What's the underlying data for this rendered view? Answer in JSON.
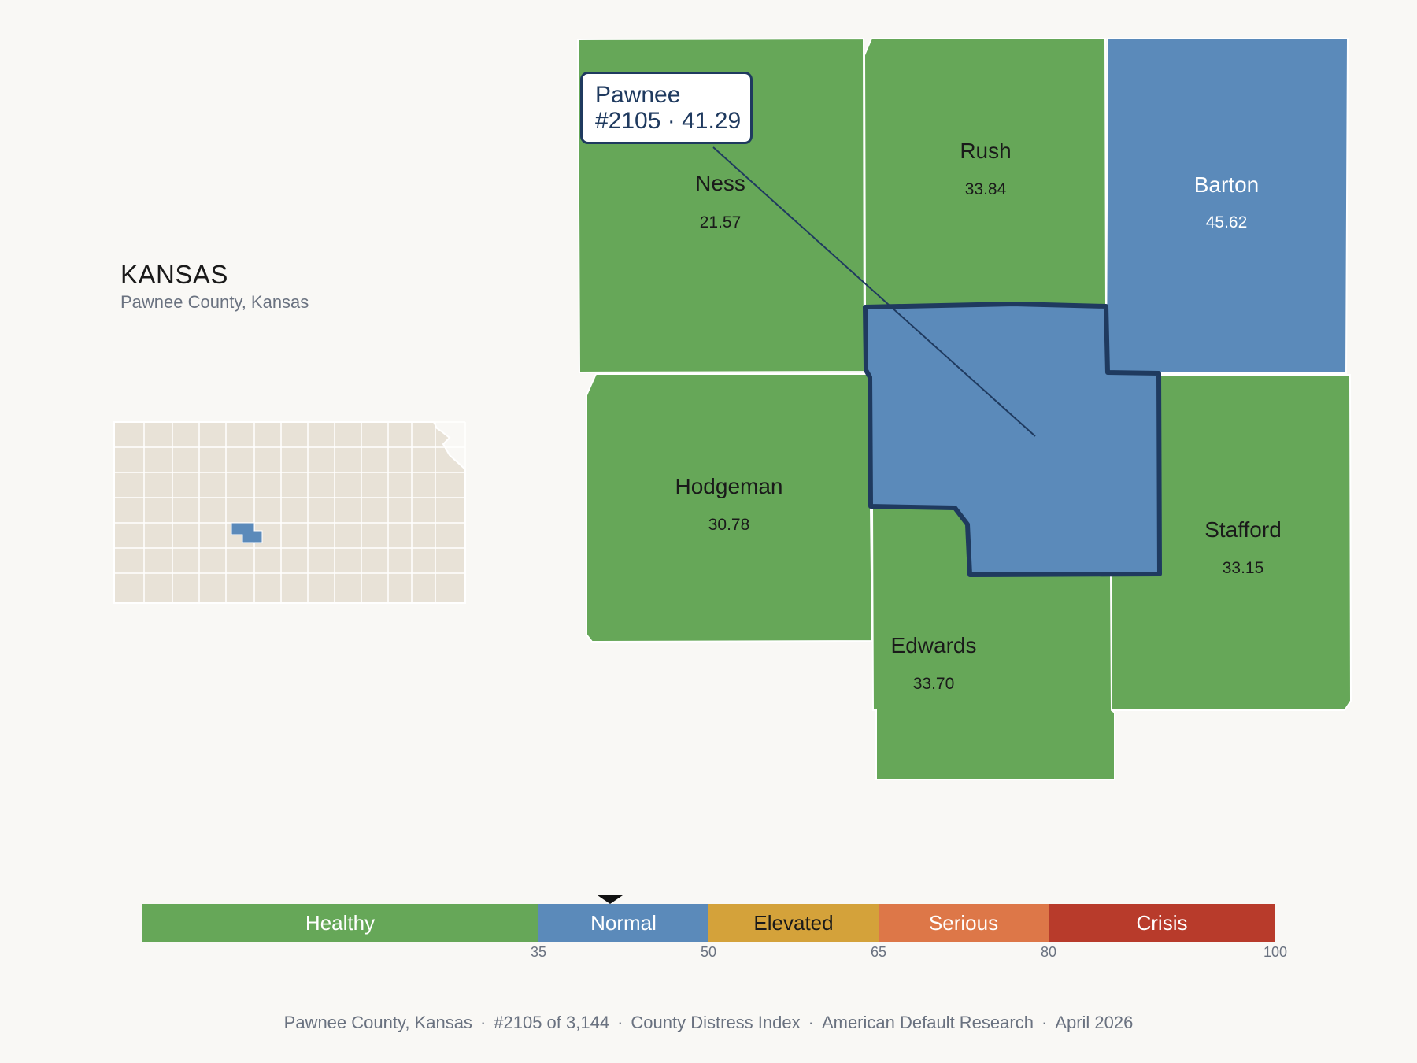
{
  "header": {
    "state": "KANSAS",
    "subtitle": "Pawnee County, Kansas"
  },
  "highlight_color": "#5b8aba",
  "counties": [
    {
      "id": "ness",
      "name": "Ness",
      "value": "21.57",
      "category": "Healthy",
      "color": "#66a758"
    },
    {
      "id": "rush",
      "name": "Rush",
      "value": "33.84",
      "category": "Healthy",
      "color": "#66a758"
    },
    {
      "id": "barton",
      "name": "Barton",
      "value": "45.62",
      "category": "Normal",
      "color": "#5b8aba"
    },
    {
      "id": "hodgeman",
      "name": "Hodgeman",
      "value": "30.78",
      "category": "Healthy",
      "color": "#66a758"
    },
    {
      "id": "stafford",
      "name": "Stafford",
      "value": "33.15",
      "category": "Healthy",
      "color": "#66a758"
    },
    {
      "id": "edwards",
      "name": "Edwards",
      "value": "33.70",
      "category": "Healthy",
      "color": "#66a758"
    },
    {
      "id": "pawnee",
      "name": "Pawnee",
      "value": "41.29",
      "category": "Normal",
      "color": "#5b8aba",
      "selected": true
    }
  ],
  "tooltip": {
    "line1": "Pawnee",
    "line2": "#2105 · 41.29"
  },
  "legend": {
    "segments": [
      {
        "label": "Healthy",
        "from": 0,
        "to": 35,
        "color": "#66a758"
      },
      {
        "label": "Normal",
        "from": 35,
        "to": 50,
        "color": "#5b8aba"
      },
      {
        "label": "Elevated",
        "from": 50,
        "to": 65,
        "color": "#d4a23a"
      },
      {
        "label": "Serious",
        "from": 65,
        "to": 80,
        "color": "#dd7748"
      },
      {
        "label": "Crisis",
        "from": 80,
        "to": 100,
        "color": "#b83b2b"
      }
    ],
    "ticks": [
      "35",
      "50",
      "65",
      "80",
      "100"
    ],
    "marker_value": 41.29
  },
  "footer": {
    "county": "Pawnee County, Kansas",
    "rank": "#2105 of 3,144",
    "index": "County Distress Index",
    "source": "American Default Research",
    "date": "April 2026"
  }
}
